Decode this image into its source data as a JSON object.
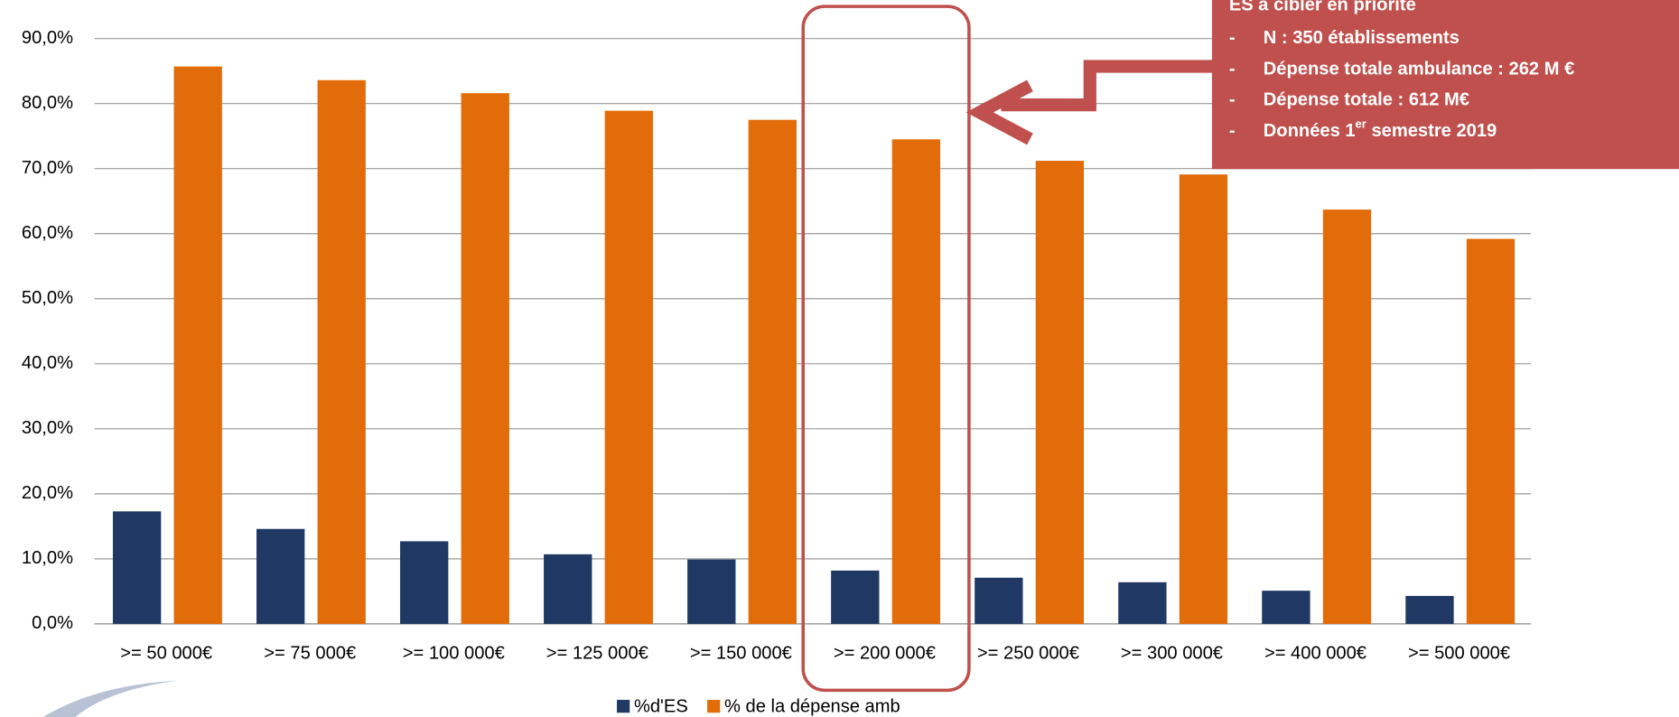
{
  "chart_data": {
    "type": "bar",
    "categories": [
      ">= 50 000€",
      ">= 75 000€",
      ">= 100 000€",
      ">= 125 000€",
      ">= 150 000€",
      ">= 200 000€",
      ">= 250 000€",
      ">= 300 000€",
      ">= 400 000€",
      ">= 500 000€"
    ],
    "series": [
      {
        "name": "%d'ES",
        "color": "#1f3864",
        "values": [
          17.3,
          14.6,
          12.7,
          10.7,
          9.9,
          8.2,
          7.1,
          6.4,
          5.1,
          4.3
        ]
      },
      {
        "name": "% de la dépense amb",
        "color": "#e36c0a",
        "values": [
          85.7,
          83.6,
          81.6,
          78.9,
          77.5,
          74.5,
          71.2,
          69.1,
          63.7,
          59.2
        ]
      }
    ],
    "ylim": [
      0,
      90
    ],
    "yticks": [
      {
        "value": 0,
        "label": "0,0%"
      },
      {
        "value": 10,
        "label": "10,0%"
      },
      {
        "value": 20,
        "label": "20,0%"
      },
      {
        "value": 30,
        "label": "30,0%"
      },
      {
        "value": 40,
        "label": "40,0%"
      },
      {
        "value": 50,
        "label": "50,0%"
      },
      {
        "value": 60,
        "label": "60,0%"
      },
      {
        "value": 70,
        "label": "70,0%"
      },
      {
        "value": 80,
        "label": "80,0%"
      },
      {
        "value": 90,
        "label": "90,0%"
      }
    ],
    "grid": true,
    "legend": "bottom"
  },
  "annotation": {
    "heading": "ES à cibler en priorité",
    "items": [
      "N : 350 établissements",
      "Dépense totale ambulance : 262 M €",
      "Dépense totale : 612 M€"
    ],
    "last_item": {
      "text": "Données 1",
      "sup": "er",
      "rest": " semestre 2019"
    },
    "bullet": "-"
  }
}
